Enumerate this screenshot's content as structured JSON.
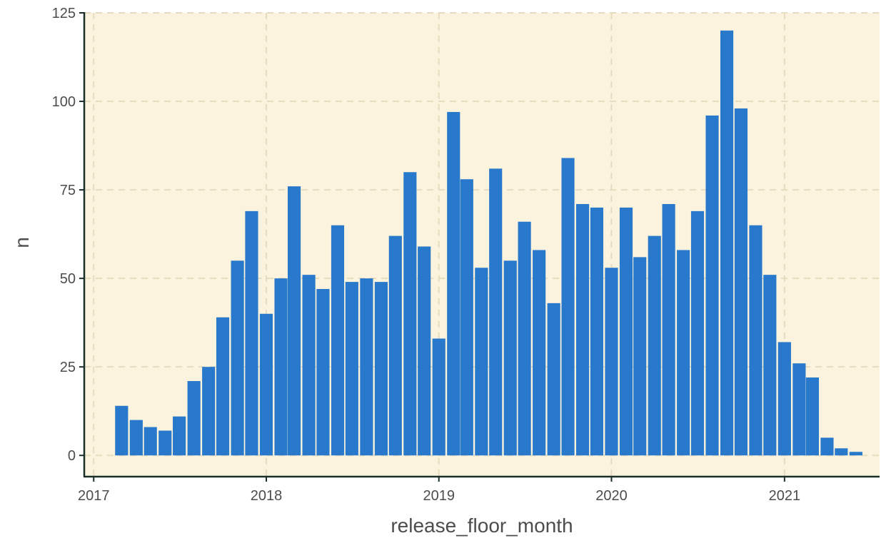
{
  "chart_data": {
    "type": "bar",
    "xlabel": "release_floor_month",
    "ylabel": "n",
    "xlim": [
      "2016-12-12",
      "2021-07-21"
    ],
    "ylim": [
      -6,
      125
    ],
    "x_ticks": [
      "2017",
      "2018",
      "2019",
      "2020",
      "2021"
    ],
    "y_ticks": [
      0,
      25,
      50,
      75,
      100,
      125
    ],
    "grid": true,
    "colors": {
      "bar": "#2878cb",
      "panel_background": "#fbf3dd",
      "grid": "#e8dcc0",
      "axis_line": "#1a2e2a"
    },
    "x": [
      "2017-03",
      "2017-04",
      "2017-05",
      "2017-06",
      "2017-07",
      "2017-08",
      "2017-09",
      "2017-10",
      "2017-11",
      "2017-12",
      "2018-01",
      "2018-02",
      "2018-03",
      "2018-04",
      "2018-05",
      "2018-06",
      "2018-07",
      "2018-08",
      "2018-09",
      "2018-10",
      "2018-11",
      "2018-12",
      "2019-01",
      "2019-02",
      "2019-03",
      "2019-04",
      "2019-05",
      "2019-06",
      "2019-07",
      "2019-08",
      "2019-09",
      "2019-10",
      "2019-11",
      "2019-12",
      "2020-01",
      "2020-02",
      "2020-03",
      "2020-04",
      "2020-05",
      "2020-06",
      "2020-07",
      "2020-08",
      "2020-09",
      "2020-10",
      "2020-11",
      "2020-12",
      "2021-01",
      "2021-02",
      "2021-03",
      "2021-04",
      "2021-05",
      "2021-06"
    ],
    "values": [
      14,
      10,
      8,
      7,
      11,
      21,
      25,
      39,
      55,
      69,
      40,
      50,
      76,
      51,
      47,
      65,
      49,
      50,
      49,
      62,
      80,
      59,
      33,
      97,
      78,
      53,
      81,
      55,
      66,
      58,
      43,
      84,
      71,
      70,
      53,
      70,
      56,
      62,
      71,
      58,
      69,
      96,
      120,
      98,
      65,
      51,
      32,
      26,
      22,
      5,
      2,
      1
    ]
  }
}
